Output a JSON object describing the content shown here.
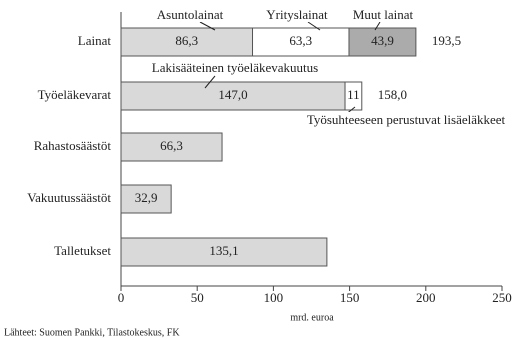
{
  "chart_data": {
    "type": "stacked-barh",
    "categories": [
      "Lainat",
      "Työeläkevarat",
      "Rahastosäästöt",
      "Vakuutussäästöt",
      "Talletukset"
    ],
    "series": [
      {
        "color": "#d9d9d9",
        "values": [
          86.3,
          147.0,
          66.3,
          32.9,
          135.1
        ],
        "value_labels": [
          "86,3",
          "147,0",
          "66,3",
          "32,9",
          "135,1"
        ]
      },
      {
        "color": "#ffffff",
        "values": [
          63.3,
          11,
          null,
          null,
          null
        ],
        "value_labels": [
          "63,3",
          "11",
          null,
          null,
          null
        ]
      },
      {
        "color": "#ababab",
        "values": [
          43.9,
          null,
          null,
          null,
          null
        ],
        "value_labels": [
          "43,9",
          null,
          null,
          null,
          null
        ]
      }
    ],
    "totals": [
      193.5,
      158.0,
      null,
      null,
      null
    ],
    "total_labels": [
      "193,5",
      "158,0",
      null,
      null,
      null
    ],
    "annotations": [
      "Asuntolainat",
      "Yrityslainat",
      "Muut lainat",
      "Lakisääteinen työeläkevakuutus",
      "Työsuhteeseen perustuvat lisäeläkkeet"
    ],
    "xlim": [
      0,
      250
    ],
    "xticks": [
      0,
      50,
      100,
      150,
      200,
      250
    ],
    "xlabel": "mrd. euroa",
    "source": "Lähteet: Suomen Pankki, Tilastokeskus, FK"
  }
}
